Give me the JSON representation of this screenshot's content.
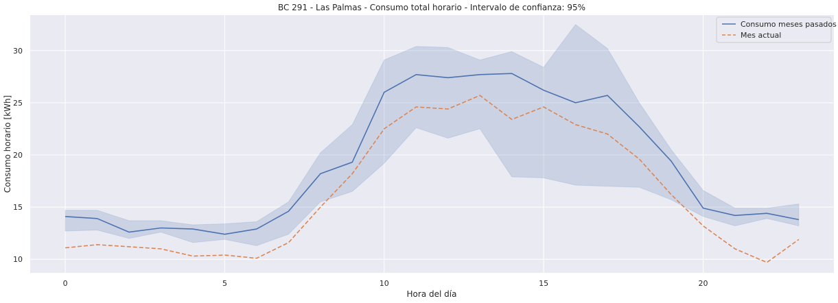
{
  "chart_data": {
    "type": "line",
    "title": "BC 291 - Las Palmas - Consumo total horario - Intervalo de confianza: 95%",
    "xlabel": "Hora del día",
    "ylabel": "Consumo horario [kWh]",
    "xlim": [
      -1.1,
      24.1
    ],
    "ylim": [
      8.7,
      33.4
    ],
    "xticks": [
      0,
      5,
      10,
      15,
      20
    ],
    "yticks": [
      10,
      15,
      20,
      25,
      30
    ],
    "grid": true,
    "legend_position": "top-right",
    "x": [
      0,
      1,
      2,
      3,
      4,
      5,
      6,
      7,
      8,
      9,
      10,
      11,
      12,
      13,
      14,
      15,
      16,
      17,
      18,
      19,
      20,
      21,
      22,
      23
    ],
    "series": [
      {
        "name": "Consumo meses pasados",
        "color": "#4c72b0",
        "style": "solid",
        "values": [
          14.1,
          13.9,
          12.6,
          13.0,
          12.9,
          12.4,
          12.9,
          14.6,
          18.2,
          19.3,
          26.0,
          27.7,
          27.4,
          27.7,
          27.8,
          26.2,
          25.0,
          25.7,
          22.7,
          19.4,
          14.9,
          14.2,
          14.4,
          13.8
        ],
        "ci_lower": [
          12.7,
          12.8,
          12.0,
          12.6,
          11.6,
          11.9,
          11.3,
          12.4,
          15.5,
          16.5,
          19.2,
          22.6,
          21.6,
          22.5,
          17.9,
          17.8,
          17.1,
          17.0,
          16.9,
          15.7,
          14.1,
          13.2,
          13.9,
          13.2
        ],
        "ci_upper": [
          14.7,
          14.7,
          13.7,
          13.7,
          13.3,
          13.4,
          13.6,
          15.5,
          20.2,
          22.9,
          29.1,
          30.4,
          30.3,
          29.1,
          29.9,
          28.4,
          32.5,
          30.2,
          25.0,
          20.5,
          16.6,
          14.9,
          14.9,
          15.3
        ]
      },
      {
        "name": "Mes actual",
        "color": "#dd8452",
        "style": "dashed",
        "values": [
          11.1,
          11.4,
          11.2,
          11.0,
          10.3,
          10.4,
          10.1,
          11.6,
          15.0,
          18.2,
          22.5,
          24.6,
          24.4,
          25.7,
          23.4,
          24.6,
          22.9,
          22.0,
          19.6,
          16.2,
          13.2,
          11.0,
          9.7,
          11.9
        ]
      }
    ],
    "ci_color": "#4c72b0"
  }
}
